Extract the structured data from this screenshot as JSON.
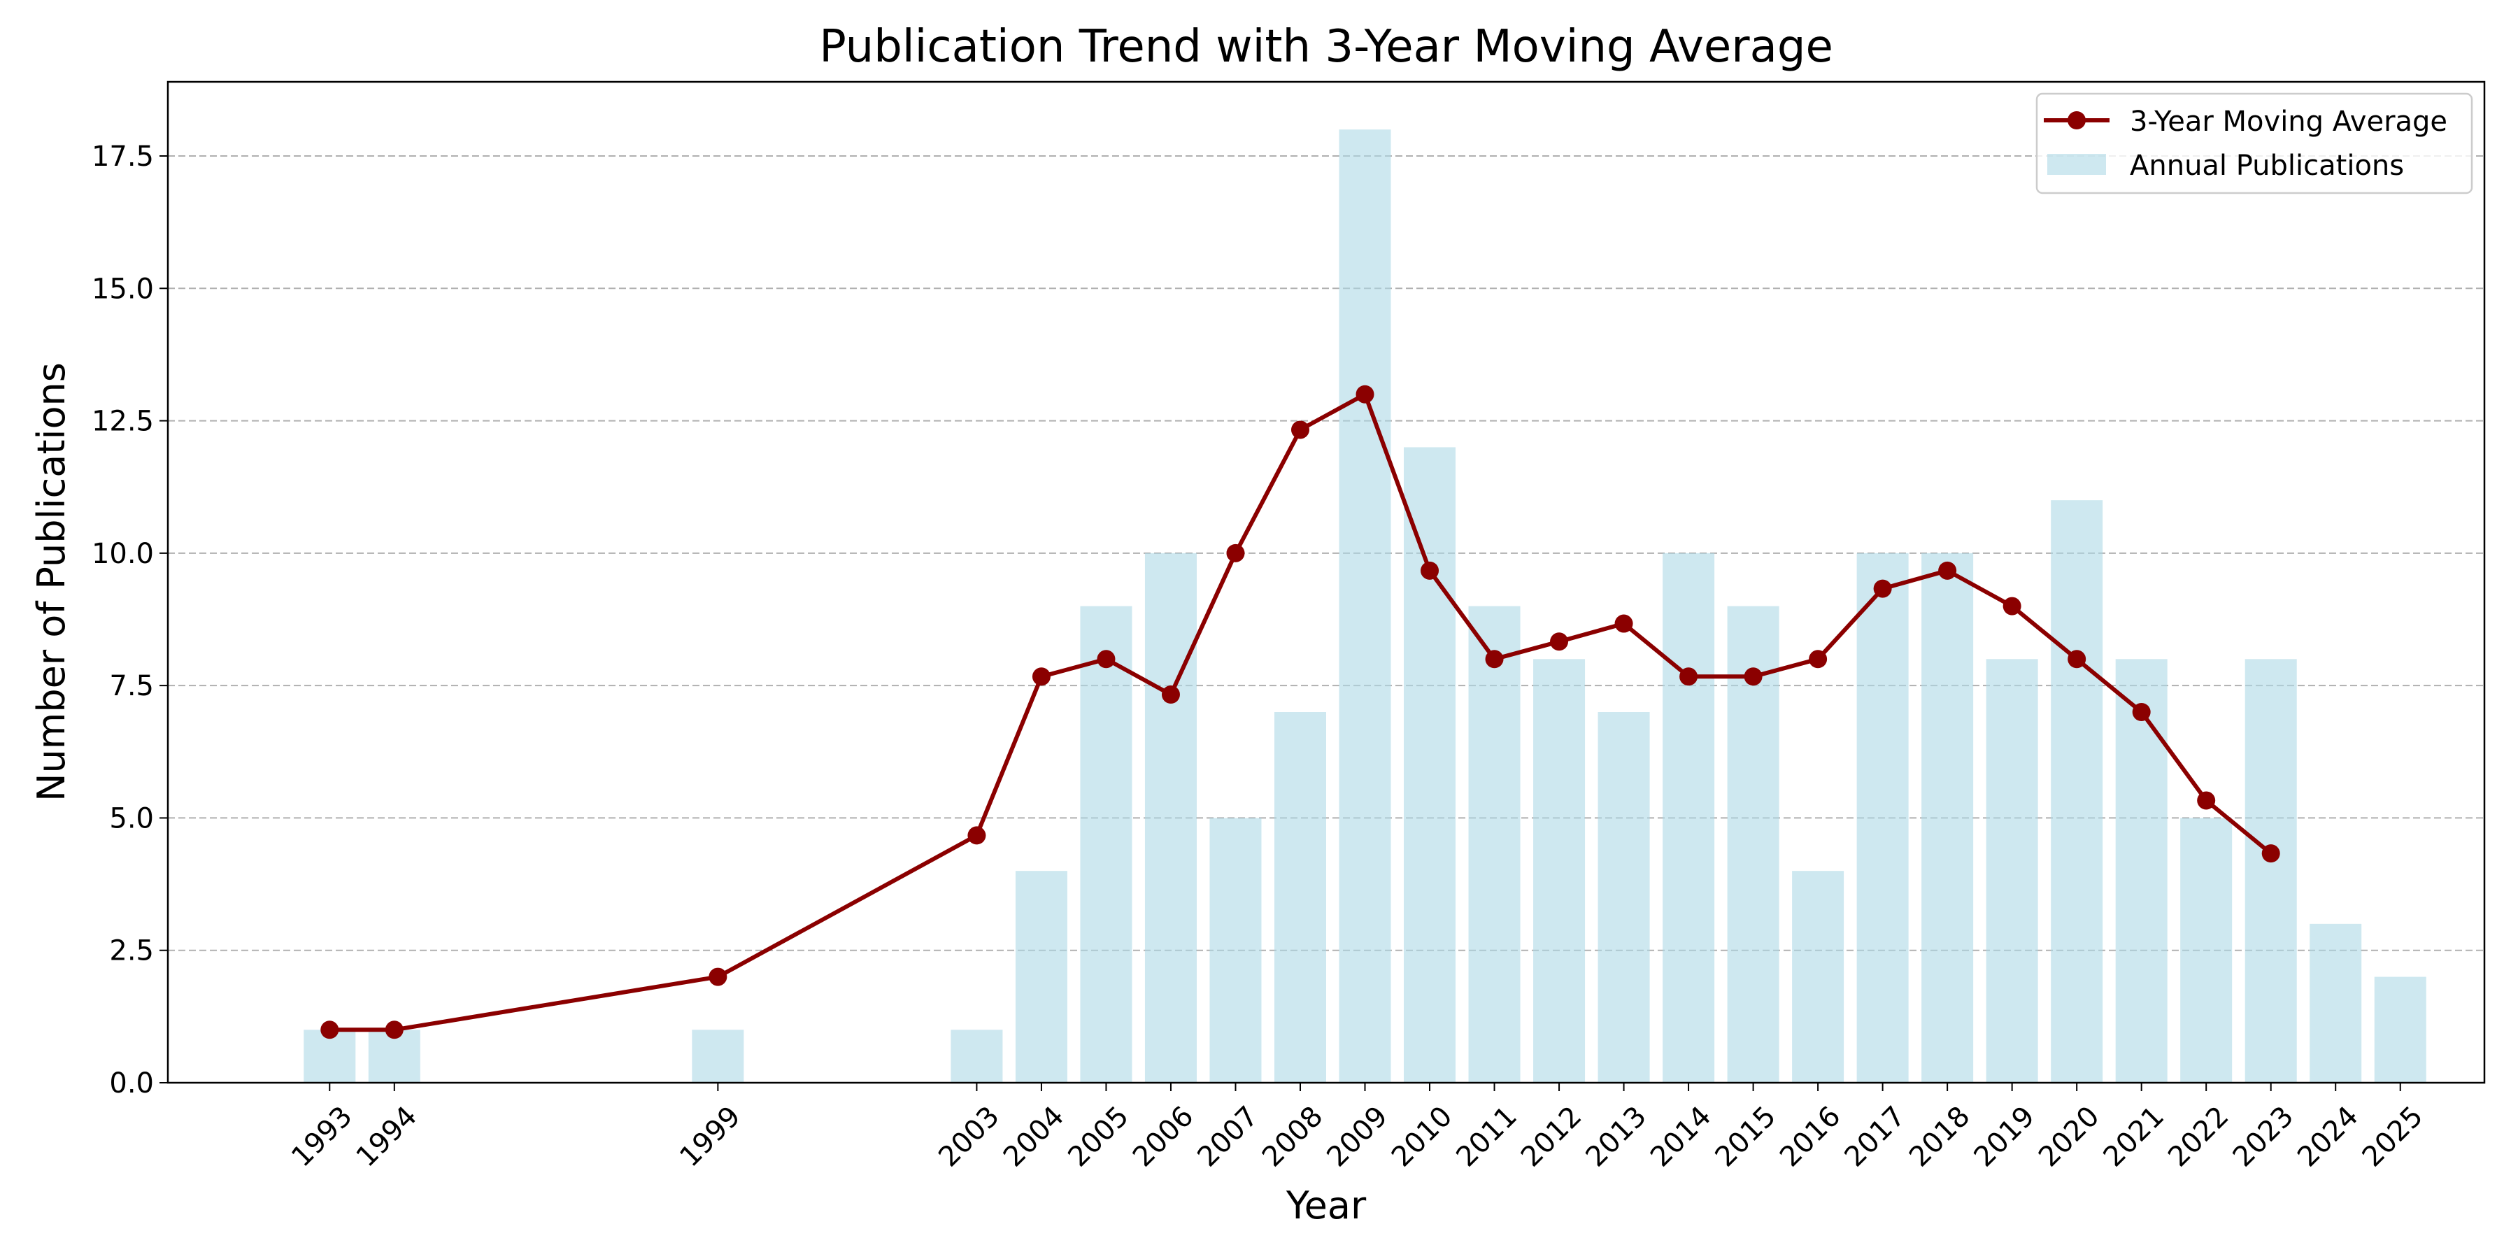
{
  "chart_data": {
    "type": "bar",
    "title": "Publication Trend with 3-Year Moving Average",
    "xlabel": "Year",
    "ylabel": "Number of Publications",
    "ylim": [
      0,
      18.9
    ],
    "xlim": [
      1990.5,
      2026.3
    ],
    "y_ticks": [
      "0.0",
      "2.5",
      "5.0",
      "7.5",
      "10.0",
      "12.5",
      "15.0",
      "17.5"
    ],
    "y_tick_values": [
      0,
      2.5,
      5,
      7.5,
      10,
      12.5,
      15,
      17.5
    ],
    "grid": "horizontal dashed",
    "legend": "top-right",
    "colors": {
      "bars": "#add8e6",
      "line": "#8b0000",
      "grid": "#b0b0b0",
      "axis": "#000000"
    },
    "series": [
      {
        "name": "Annual Publications",
        "type": "bar",
        "x": [
          1993,
          1994,
          1999,
          2003,
          2004,
          2005,
          2006,
          2007,
          2008,
          2009,
          2010,
          2011,
          2012,
          2013,
          2014,
          2015,
          2016,
          2017,
          2018,
          2019,
          2020,
          2021,
          2022,
          2023,
          2024,
          2025
        ],
        "values": [
          1,
          1,
          1,
          1,
          4,
          9,
          10,
          5,
          7,
          18,
          12,
          9,
          8,
          7,
          10,
          9,
          4,
          10,
          10,
          8,
          11,
          8,
          5,
          8,
          3,
          2
        ]
      },
      {
        "name": "3-Year Moving Average",
        "type": "line",
        "x": [
          1993,
          1994,
          1999,
          2003,
          2004,
          2005,
          2006,
          2007,
          2008,
          2009,
          2010,
          2011,
          2012,
          2013,
          2014,
          2015,
          2016,
          2017,
          2018,
          2019,
          2020,
          2021,
          2022,
          2023
        ],
        "values": [
          1.0,
          1.0,
          2.0,
          4.67,
          7.67,
          8.0,
          7.33,
          10.0,
          12.33,
          13.0,
          9.67,
          8.0,
          8.33,
          8.67,
          7.67,
          7.67,
          8.0,
          9.33,
          9.67,
          9.0,
          8.0,
          7.0,
          5.33,
          4.33
        ]
      }
    ]
  }
}
